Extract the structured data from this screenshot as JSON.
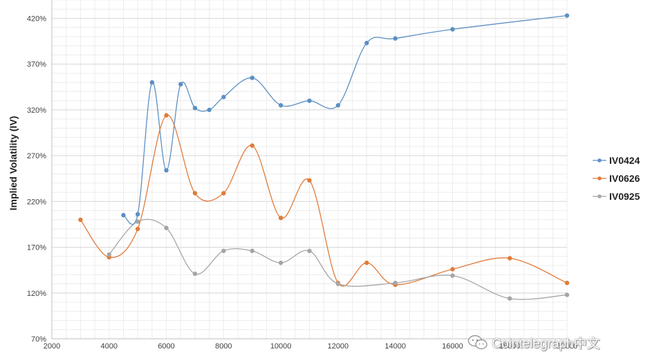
{
  "chart_data": {
    "type": "line",
    "ylabel": "Implied Volatility (IV)",
    "xlabel": "",
    "xlim": [
      2000,
      20000
    ],
    "ylim": [
      70,
      440
    ],
    "x_ticks": [
      2000,
      4000,
      6000,
      8000,
      10000,
      12000,
      14000,
      16000,
      18000,
      20000
    ],
    "y_ticks": [
      70,
      120,
      170,
      220,
      270,
      320,
      370,
      420
    ],
    "y_tick_labels": [
      "70%",
      "120%",
      "170%",
      "220%",
      "270%",
      "320%",
      "370%",
      "420%"
    ],
    "grid": true,
    "legend_position": "right",
    "series": [
      {
        "name": "IV0424",
        "color": "#5b8fc4",
        "x": [
          4500,
          5000,
          5500,
          6000,
          6500,
          7000,
          7500,
          8000,
          9000,
          10000,
          11000,
          12000,
          13000,
          14000,
          16000,
          20000
        ],
        "y": [
          205,
          206,
          350,
          254,
          348,
          322,
          320,
          334,
          355,
          325,
          330,
          325,
          393,
          398,
          408,
          423
        ]
      },
      {
        "name": "IV0626",
        "color": "#e07b39",
        "x": [
          3000,
          4000,
          5000,
          6000,
          7000,
          8000,
          9000,
          10000,
          11000,
          12000,
          13000,
          14000,
          16000,
          18000,
          20000
        ],
        "y": [
          200,
          159,
          190,
          314,
          229,
          229,
          281,
          202,
          243,
          131,
          153,
          129,
          146,
          158,
          131
        ]
      },
      {
        "name": "IV0925",
        "color": "#a5a5a5",
        "x": [
          4000,
          5000,
          6000,
          7000,
          8000,
          9000,
          10000,
          11000,
          12000,
          14000,
          16000,
          18000,
          20000
        ],
        "y": [
          162,
          198,
          191,
          141,
          166,
          166,
          153,
          166,
          130,
          131,
          139,
          114,
          118
        ]
      }
    ]
  },
  "watermark": {
    "text": "Cointelegraph中文",
    "icon": "wechat-icon"
  }
}
